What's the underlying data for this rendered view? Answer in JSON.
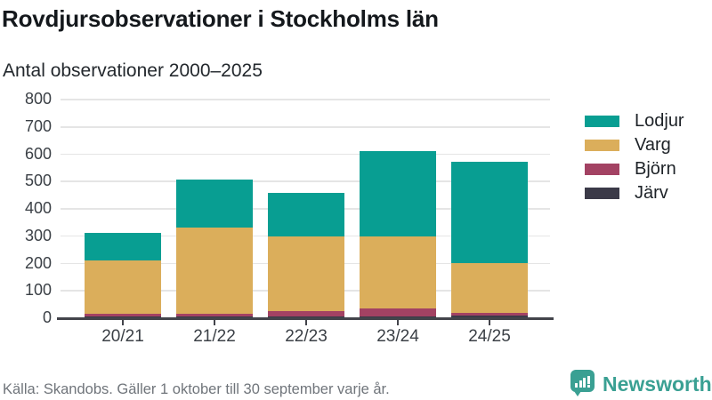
{
  "header": {
    "title": "Rovdjursobservationer i Stockholms län",
    "subtitle": "Antal observationer 2000–2025"
  },
  "footer": {
    "source": "Källa: Skandobs. Gäller 1 oktober till 30 september varje år.",
    "brand": "Newsworthy"
  },
  "colors": {
    "lodjur_teal": "#089e92",
    "varg_gold": "#dbae5b",
    "bjorn_maroon": "#a34263",
    "jarv_dark": "#3b3a48",
    "gridline": "#e5e5e5",
    "axis": "#43444b",
    "brand_teal": "#3aa093",
    "text_dark": "#14181c",
    "text_muted": "#70757b"
  },
  "chart_data": {
    "type": "bar",
    "stacked": true,
    "title": "Rovdjursobservationer i Stockholms län",
    "subtitle": "Antal observationer 2000–2025",
    "categories": [
      "20/21",
      "21/22",
      "22/23",
      "23/24",
      "24/25"
    ],
    "series": [
      {
        "name": "Järv",
        "color": "#3b3a48",
        "values": [
          2,
          2,
          3,
          3,
          5
        ]
      },
      {
        "name": "Björn",
        "color": "#a34263",
        "values": [
          10,
          10,
          20,
          31,
          10
        ]
      },
      {
        "name": "Varg",
        "color": "#dbae5b",
        "values": [
          196,
          318,
          272,
          261,
          185
        ]
      },
      {
        "name": "Lodjur",
        "color": "#089e92",
        "values": [
          102,
          175,
          160,
          315,
          370
        ]
      }
    ],
    "totals": [
      310,
      505,
      455,
      610,
      570
    ],
    "ylabel": "",
    "xlabel": "",
    "ylim": [
      0,
      800
    ],
    "ytick_step": 100,
    "yticks": [
      0,
      100,
      200,
      300,
      400,
      500,
      600,
      700,
      800
    ],
    "grid": true,
    "legend_position": "right",
    "legend_order": [
      "Lodjur",
      "Varg",
      "Björn",
      "Järv"
    ]
  }
}
